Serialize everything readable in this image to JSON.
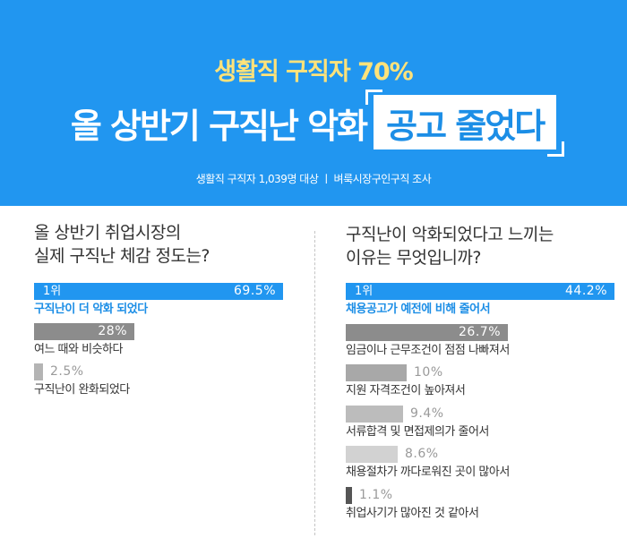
{
  "header": {
    "subtitle": "생활직 구직자 70%",
    "title_main": "올 상반기 구직난 악화",
    "title_highlight": "공고 줄었다",
    "source": "생활직 구직자 1,039명 대상  ㅣ  벼룩시장구인구직 조사"
  },
  "chart_data": [
    {
      "type": "bar",
      "orientation": "horizontal",
      "title": "올 상반기 취업시장의 실제 구직난 체감 정도는?",
      "title_lines": [
        "올 상반기 취업시장의",
        "실제 구직난 체감 정도는?"
      ],
      "rank_label": "1위",
      "categories": [
        "구직난이 더 악화 되었다",
        "여느 때와 비슷하다",
        "구직난이 완화되었다"
      ],
      "values": [
        69.5,
        28,
        2.5
      ],
      "value_labels": [
        "69.5%",
        "28%",
        "2.5%"
      ],
      "unit": "%",
      "colors": [
        "#2196f0",
        "#8c8c8c",
        "#b4b4b4"
      ]
    },
    {
      "type": "bar",
      "orientation": "horizontal",
      "title": "구직난이 악화되었다고 느끼는 이유는 무엇입니까?",
      "title_lines": [
        "구직난이 악화되었다고 느끼는",
        "이유는 무엇입니까?"
      ],
      "rank_label": "1위",
      "categories": [
        "채용공고가 예전에 비해 줄어서",
        "임금이나 근무조건이 점점 나빠져서",
        "지원 자격조건이 높아져서",
        "서류합격 및 면접제의가 줄어서",
        "채용절차가 까다로워진 곳이 많아서",
        "취업사기가 많아진 것 같아서"
      ],
      "values": [
        44.2,
        26.7,
        10,
        9.4,
        8.6,
        1.1
      ],
      "value_labels": [
        "44.2%",
        "26.7%",
        "10%",
        "9.4%",
        "8.6%",
        "1.1%"
      ],
      "unit": "%",
      "colors": [
        "#2196f0",
        "#8c8c8c",
        "#a8a8a8",
        "#bcbcbc",
        "#d2d2d2",
        "#555555"
      ]
    }
  ]
}
